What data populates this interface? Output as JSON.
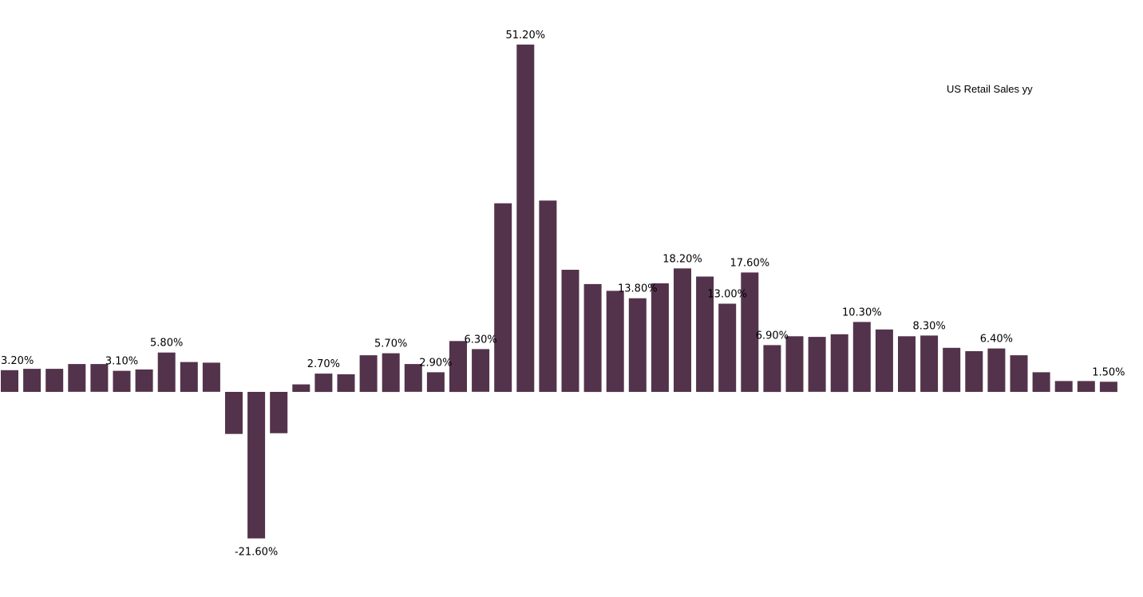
{
  "chart_data": {
    "type": "bar",
    "legend_position": "top-right",
    "grid": false,
    "ylim": [
      -23,
      53
    ],
    "series": [
      {
        "name": "US Retail Sales yy",
        "color": "#53334b",
        "values": [
          3.2,
          3.4,
          3.4,
          4.1,
          4.1,
          3.1,
          3.3,
          5.8,
          4.4,
          4.3,
          -6.2,
          -21.6,
          -6.1,
          1.1,
          2.7,
          2.6,
          5.4,
          5.7,
          4.1,
          2.9,
          7.5,
          6.3,
          27.8,
          51.2,
          28.2,
          18.0,
          15.9,
          14.9,
          13.8,
          16.0,
          18.2,
          17.0,
          13.0,
          17.6,
          6.9,
          8.2,
          8.1,
          8.5,
          10.3,
          9.2,
          8.2,
          8.3,
          6.5,
          6.0,
          6.4,
          5.4,
          2.9,
          1.6,
          1.6,
          1.5
        ]
      }
    ],
    "data_labels": [
      {
        "index": 0,
        "text": "3.20%"
      },
      {
        "index": 5,
        "text": "3.10%"
      },
      {
        "index": 7,
        "text": "5.80%"
      },
      {
        "index": 11,
        "text": "-21.60%"
      },
      {
        "index": 14,
        "text": "2.70%"
      },
      {
        "index": 17,
        "text": "5.70%"
      },
      {
        "index": 19,
        "text": "2.90%"
      },
      {
        "index": 21,
        "text": "6.30%"
      },
      {
        "index": 23,
        "text": "51.20%"
      },
      {
        "index": 28,
        "text": "13.80%"
      },
      {
        "index": 30,
        "text": "18.20%"
      },
      {
        "index": 32,
        "text": "13.00%"
      },
      {
        "index": 33,
        "text": "17.60%"
      },
      {
        "index": 34,
        "text": "6.90%"
      },
      {
        "index": 38,
        "text": "10.30%"
      },
      {
        "index": 41,
        "text": "8.30%"
      },
      {
        "index": 44,
        "text": "6.40%"
      },
      {
        "index": 49,
        "text": "1.50%"
      }
    ]
  }
}
